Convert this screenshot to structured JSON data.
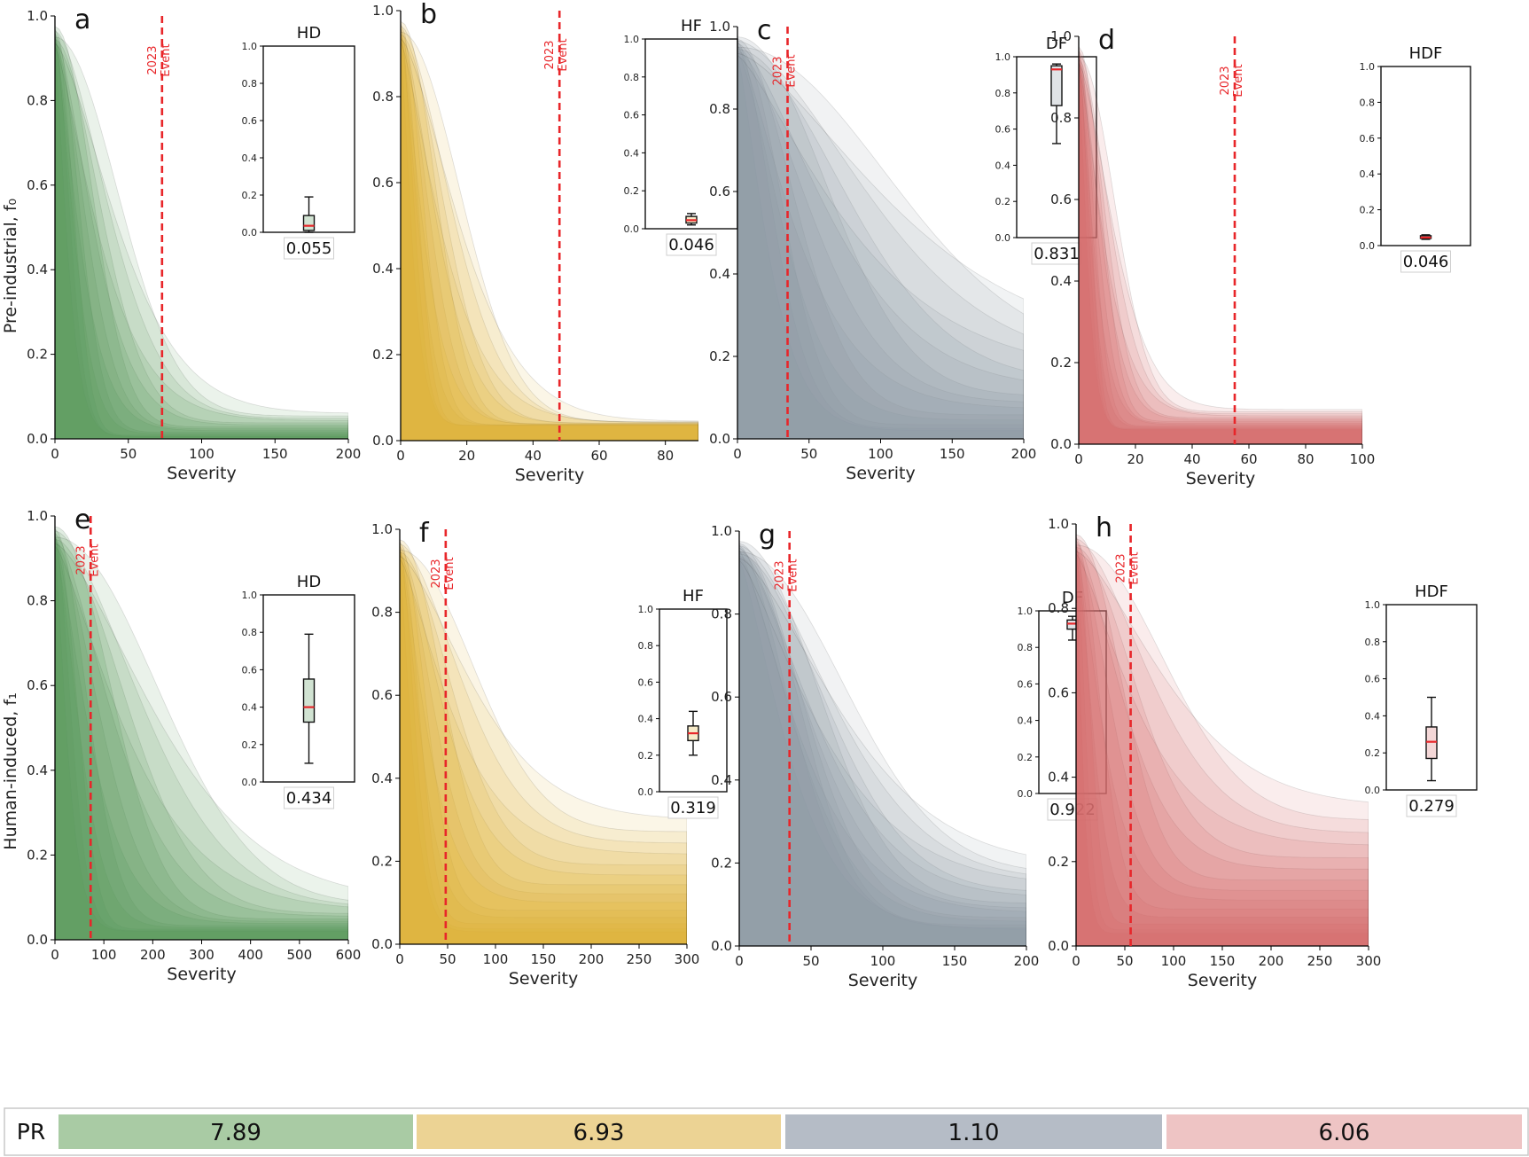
{
  "figure": {
    "row_labels": {
      "top": "Pre-industrial, f₀",
      "bottom": "Human-induced, f₁"
    },
    "event_label": [
      "2023",
      "Event"
    ],
    "pr_label": "PR"
  },
  "colors": {
    "HD": "#5b9a5e",
    "HF": "#e0b238",
    "DF": "#8f99a6",
    "HDF": "#d76e6e",
    "event": "#e8262a",
    "median": "#e8262a",
    "pr_HD": "#a9cba4",
    "pr_HF": "#ecd394",
    "pr_DF": "#b5bcc6",
    "pr_HDF": "#eec4c4"
  },
  "chart_data": [
    {
      "type": "area",
      "panel_letter": "a",
      "hazard": "HD",
      "row": "Pre-industrial",
      "xlabel": "Severity",
      "ylabel": "Pre-industrial, f₀",
      "xlim": [
        0,
        200
      ],
      "ylim": [
        0,
        1.0
      ],
      "xticks": [
        0,
        50,
        100,
        150,
        200
      ],
      "yticks": [
        0.0,
        0.2,
        0.4,
        0.6,
        0.8,
        1.0
      ],
      "event_x": 73,
      "tail_min": 0.005,
      "tail_max": 0.06,
      "drop_min": 20,
      "drop_max": 95,
      "inset_title": "HD",
      "box": {
        "min": 0.0,
        "q1": 0.01,
        "median": 0.035,
        "q3": 0.09,
        "max": 0.19
      },
      "mean_label": "0.055"
    },
    {
      "type": "area",
      "panel_letter": "b",
      "hazard": "HF",
      "row": "Pre-industrial",
      "xlabel": "Severity",
      "ylabel": "",
      "xlim": [
        0,
        90
      ],
      "ylim": [
        0,
        1.0
      ],
      "xticks": [
        0,
        20,
        40,
        60,
        80
      ],
      "yticks": [
        0.0,
        0.2,
        0.4,
        0.6,
        0.8,
        1.0
      ],
      "event_x": 48,
      "tail_min": 0.035,
      "tail_max": 0.045,
      "drop_min": 8,
      "drop_max": 40,
      "inset_title": "HF",
      "box": {
        "min": 0.02,
        "q1": 0.03,
        "median": 0.045,
        "q3": 0.065,
        "max": 0.08
      },
      "mean_label": "0.046"
    },
    {
      "type": "area",
      "panel_letter": "c",
      "hazard": "DF",
      "row": "Pre-industrial",
      "xlabel": "Severity",
      "ylabel": "",
      "xlim": [
        0,
        200
      ],
      "ylim": [
        0,
        1.0
      ],
      "xticks": [
        0,
        50,
        100,
        150,
        200
      ],
      "yticks": [
        0.0,
        0.2,
        0.4,
        0.6,
        0.8,
        1.0
      ],
      "event_x": 35,
      "tail_min": 0.02,
      "tail_max": 0.22,
      "drop_min": 50,
      "drop_max": 230,
      "inset_title": "DF",
      "box": {
        "min": 0.52,
        "q1": 0.73,
        "median": 0.93,
        "q3": 0.95,
        "max": 0.96
      },
      "mean_label": "0.831"
    },
    {
      "type": "area",
      "panel_letter": "d",
      "hazard": "HDF",
      "row": "Pre-industrial",
      "xlabel": "Severity",
      "ylabel": "",
      "xlim": [
        0,
        100
      ],
      "ylim": [
        0,
        1.0
      ],
      "xticks": [
        0,
        20,
        40,
        60,
        80,
        100
      ],
      "yticks": [
        0.0,
        0.2,
        0.4,
        0.6,
        0.8,
        1.0
      ],
      "event_x": 55,
      "tail_min": 0.035,
      "tail_max": 0.085,
      "drop_min": 7,
      "drop_max": 28,
      "inset_title": "HDF",
      "box": {
        "min": 0.035,
        "q1": 0.04,
        "median": 0.045,
        "q3": 0.055,
        "max": 0.06
      },
      "mean_label": "0.046"
    },
    {
      "type": "area",
      "panel_letter": "e",
      "hazard": "HD",
      "row": "Human-induced",
      "xlabel": "Severity",
      "ylabel": "Human-induced, f₁",
      "xlim": [
        0,
        600
      ],
      "ylim": [
        0,
        1.0
      ],
      "xticks": [
        0,
        100,
        200,
        300,
        400,
        500,
        600
      ],
      "yticks": [
        0.0,
        0.2,
        0.4,
        0.6,
        0.8,
        1.0
      ],
      "event_x": 73,
      "tail_min": 0.02,
      "tail_max": 0.09,
      "drop_min": 60,
      "drop_max": 470,
      "inset_title": "HD",
      "box": {
        "min": 0.1,
        "q1": 0.32,
        "median": 0.4,
        "q3": 0.55,
        "max": 0.79
      },
      "mean_label": "0.434"
    },
    {
      "type": "area",
      "panel_letter": "f",
      "hazard": "HF",
      "row": "Human-induced",
      "xlabel": "Severity",
      "ylabel": "",
      "xlim": [
        0,
        300
      ],
      "ylim": [
        0,
        1.0
      ],
      "xticks": [
        0,
        50,
        100,
        150,
        200,
        250,
        300
      ],
      "yticks": [
        0.0,
        0.2,
        0.4,
        0.6,
        0.8,
        1.0
      ],
      "event_x": 48,
      "tail_min": 0.03,
      "tail_max": 0.3,
      "drop_min": 30,
      "drop_max": 170,
      "inset_title": "HF",
      "box": {
        "min": 0.2,
        "q1": 0.28,
        "median": 0.32,
        "q3": 0.36,
        "max": 0.44
      },
      "mean_label": "0.319"
    },
    {
      "type": "area",
      "panel_letter": "g",
      "hazard": "DF",
      "row": "Human-induced",
      "xlabel": "Severity",
      "ylabel": "",
      "xlim": [
        0,
        200
      ],
      "ylim": [
        0,
        1.0
      ],
      "xticks": [
        0,
        50,
        100,
        150,
        200
      ],
      "yticks": [
        0.0,
        0.2,
        0.4,
        0.6,
        0.8,
        1.0
      ],
      "event_x": 35,
      "tail_min": 0.04,
      "tail_max": 0.19,
      "drop_min": 80,
      "drop_max": 155,
      "inset_title": "DF",
      "box": {
        "min": 0.84,
        "q1": 0.9,
        "median": 0.93,
        "q3": 0.95,
        "max": 0.97
      },
      "mean_label": "0.922"
    },
    {
      "type": "area",
      "panel_letter": "h",
      "hazard": "HDF",
      "row": "Human-induced",
      "xlabel": "Severity",
      "ylabel": "",
      "xlim": [
        0,
        300
      ],
      "ylim": [
        0,
        1.0
      ],
      "xticks": [
        0,
        50,
        100,
        150,
        200,
        250,
        300
      ],
      "yticks": [
        0.0,
        0.2,
        0.4,
        0.6,
        0.8,
        1.0
      ],
      "event_x": 56,
      "tail_min": 0.03,
      "tail_max": 0.33,
      "drop_min": 15,
      "drop_max": 200,
      "inset_title": "HDF",
      "box": {
        "min": 0.05,
        "q1": 0.17,
        "median": 0.26,
        "q3": 0.34,
        "max": 0.5
      },
      "mean_label": "0.279"
    },
    {
      "type": "table",
      "title": "PR",
      "categories": [
        "HD",
        "HF",
        "DF",
        "HDF"
      ],
      "values": [
        "7.89",
        "6.93",
        "1.10",
        "6.06"
      ]
    }
  ]
}
